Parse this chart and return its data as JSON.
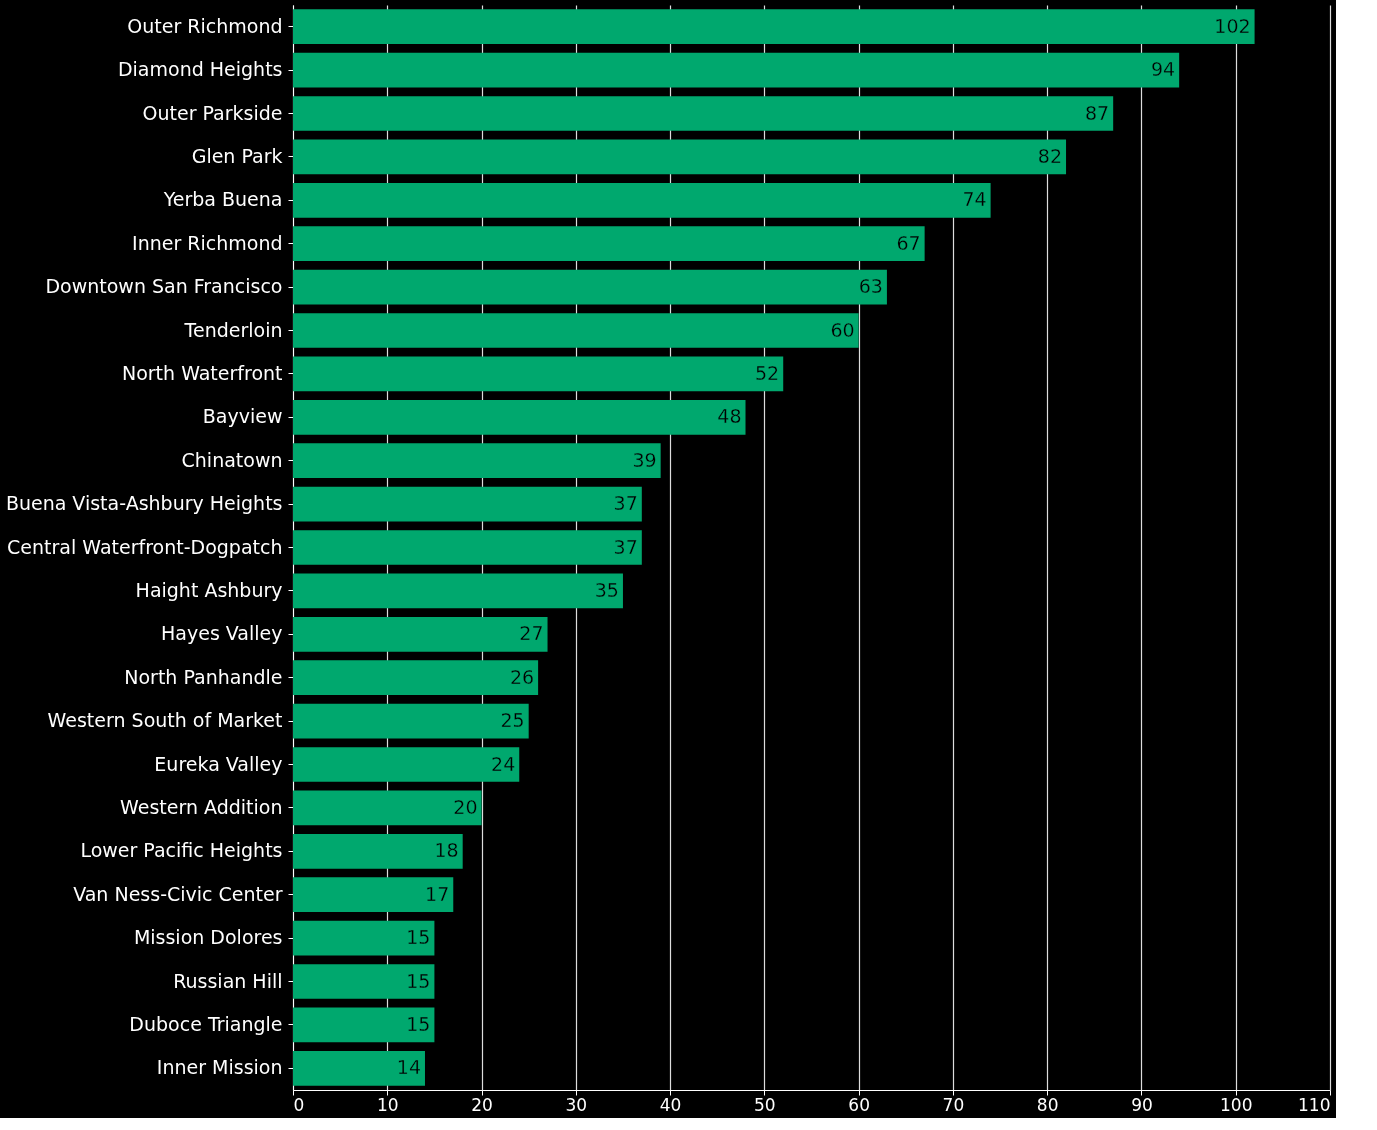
{
  "chart_data": {
    "type": "bar",
    "orientation": "horizontal",
    "categories": [
      "Outer Richmond",
      "Diamond Heights",
      "Outer Parkside",
      "Glen Park",
      "Yerba Buena",
      "Inner Richmond",
      "Downtown San Francisco",
      "Tenderloin",
      "North Waterfront",
      "Bayview",
      "Chinatown",
      "Buena Vista-Ashbury Heights",
      "Central Waterfront-Dogpatch",
      "Haight Ashbury",
      "Hayes Valley",
      "North Panhandle",
      "Western South of Market",
      "Eureka Valley",
      "Western Addition",
      "Lower Pacific Heights",
      "Van Ness-Civic Center",
      "Mission Dolores",
      "Russian Hill",
      "Duboce Triangle",
      "Inner Mission"
    ],
    "values": [
      102,
      94,
      87,
      82,
      74,
      67,
      63,
      60,
      52,
      48,
      39,
      37,
      37,
      35,
      27,
      26,
      25,
      24,
      20,
      18,
      17,
      15,
      15,
      15,
      14
    ],
    "color": "#00a86e",
    "xlim": [
      0,
      110
    ],
    "xticks": [
      0,
      10,
      20,
      30,
      40,
      50,
      60,
      70,
      80,
      90,
      100,
      110
    ],
    "grid": "x",
    "data_labels": true
  }
}
